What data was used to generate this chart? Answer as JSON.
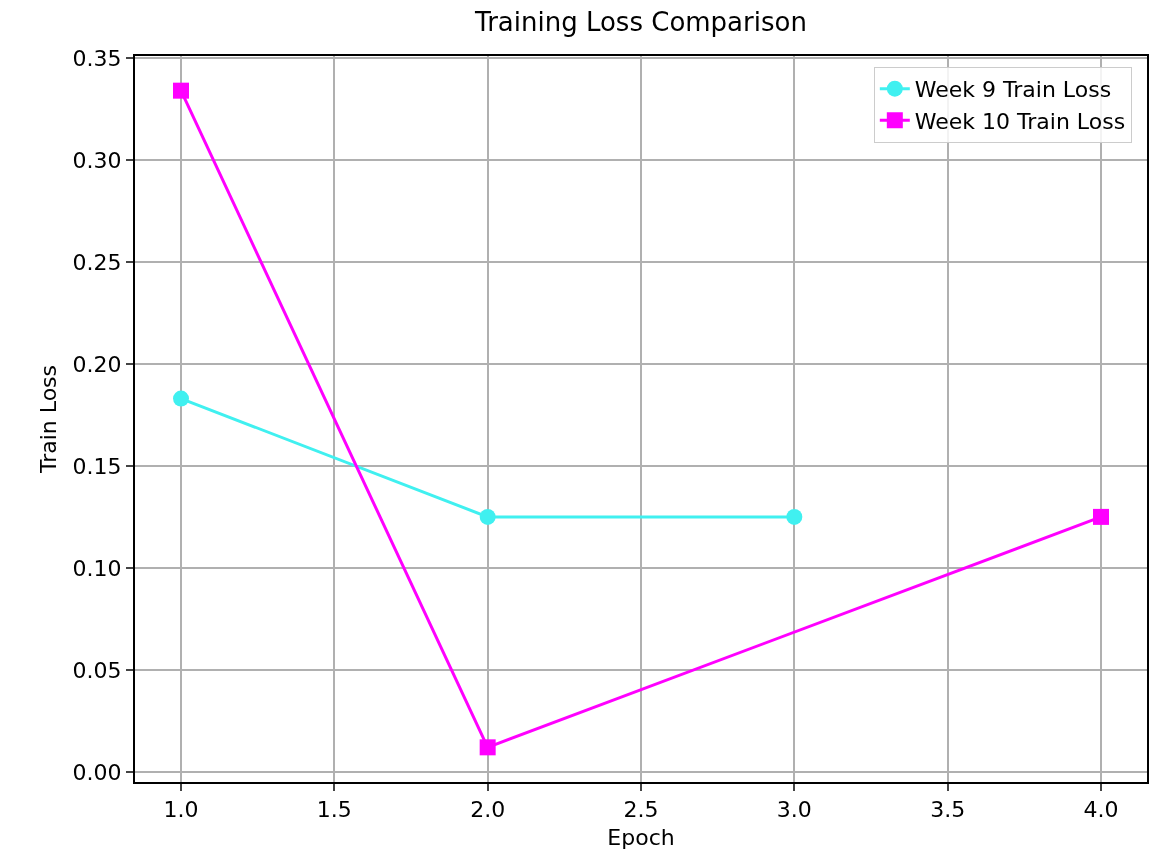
{
  "chart_data": {
    "type": "line",
    "title": "Training Loss Comparison",
    "xlabel": "Epoch",
    "ylabel": "Train Loss",
    "series": [
      {
        "name": "Week 9 Train Loss",
        "color": "#40f0f0",
        "marker": "circle",
        "x": [
          1,
          2,
          3
        ],
        "values": [
          0.183,
          0.125,
          0.125
        ]
      },
      {
        "name": "Week 10 Train Loss",
        "color": "#ff00ff",
        "marker": "square",
        "x": [
          1,
          2,
          4
        ],
        "values": [
          0.334,
          0.012,
          0.125
        ]
      }
    ],
    "xlim": [
      0.85,
      4.15
    ],
    "xticks": [
      {
        "value": 1,
        "label": "1.0"
      },
      {
        "value": 1.5,
        "label": "1.5"
      },
      {
        "value": 2,
        "label": "2.0"
      },
      {
        "value": 2.5,
        "label": "2.5"
      },
      {
        "value": 3,
        "label": "3.0"
      },
      {
        "value": 3.5,
        "label": "3.5"
      },
      {
        "value": 4,
        "label": "4.0"
      }
    ],
    "ylim": [
      -0.005,
      0.351
    ],
    "yticks": [
      {
        "value": 0,
        "label": "0.00"
      },
      {
        "value": 0.05,
        "label": "0.05"
      },
      {
        "value": 0.1,
        "label": "0.10"
      },
      {
        "value": 0.15,
        "label": "0.15"
      },
      {
        "value": 0.2,
        "label": "0.20"
      },
      {
        "value": 0.25,
        "label": "0.25"
      },
      {
        "value": 0.3,
        "label": "0.30"
      },
      {
        "value": 0.35,
        "label": "0.35"
      }
    ],
    "grid": true,
    "legend": "top right",
    "line_style": "solid"
  }
}
